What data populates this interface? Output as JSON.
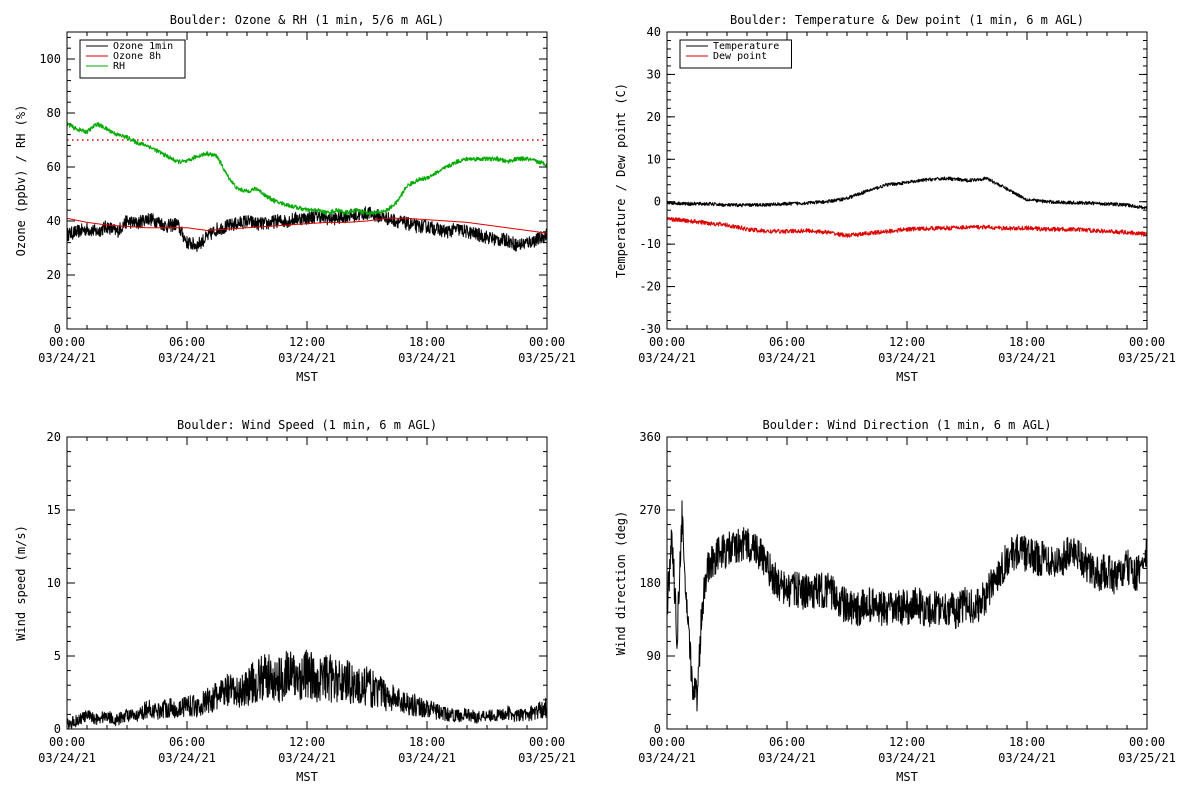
{
  "chart_data": [
    {
      "type": "line",
      "title": "Boulder: Ozone & RH (1 min, 5/6 m AGL)",
      "xlabel": "MST",
      "ylabel": "Ozone (ppbv) / RH (%)",
      "xlim": [
        0,
        24
      ],
      "ylim": [
        0,
        110
      ],
      "yticks": [
        "0",
        "20",
        "40",
        "60",
        "80",
        "100"
      ],
      "ytick_values": [
        0,
        20,
        40,
        60,
        80,
        100
      ],
      "xticks": [
        {
          "time": "00:00",
          "date": "03/24/21"
        },
        {
          "time": "06:00",
          "date": "03/24/21"
        },
        {
          "time": "12:00",
          "date": "03/24/21"
        },
        {
          "time": "18:00",
          "date": "03/24/21"
        },
        {
          "time": "00:00",
          "date": "03/25/21"
        }
      ],
      "legend_position": "top-left",
      "reference_line": {
        "y": 70,
        "color": "#dd0000",
        "style": "dotted"
      },
      "series": [
        {
          "name": "Ozone 1min",
          "color": "#000000",
          "x": [
            0,
            0.5,
            1,
            1.5,
            2,
            2.5,
            3,
            3.5,
            4,
            4.5,
            5,
            5.5,
            6,
            6.5,
            7,
            7.5,
            8,
            8.5,
            9,
            9.5,
            10,
            10.5,
            11,
            11.5,
            12,
            12.5,
            13,
            13.5,
            14,
            14.5,
            15,
            15.5,
            16,
            16.5,
            17,
            17.5,
            18,
            18.5,
            19,
            19.5,
            20,
            20.5,
            21,
            21.5,
            22,
            22.5,
            23,
            23.5,
            24
          ],
          "y": [
            35,
            36,
            37,
            36,
            38,
            36,
            40,
            39,
            41,
            40,
            38,
            39,
            32,
            31,
            34,
            37,
            38,
            39,
            40,
            39,
            39,
            40,
            40,
            41,
            41,
            42,
            41,
            41,
            42,
            42,
            43,
            42,
            41,
            40,
            39,
            38,
            38,
            37,
            36,
            37,
            36,
            35,
            34,
            33,
            33,
            31,
            32,
            33,
            35
          ]
        },
        {
          "name": "Ozone 8h",
          "color": "#dd0000",
          "x": [
            0,
            1,
            2,
            3,
            4,
            5,
            6,
            7,
            8,
            9,
            10,
            11,
            12,
            13,
            14,
            15,
            16,
            17,
            18,
            19,
            20,
            21,
            22,
            23,
            24
          ],
          "y": [
            41,
            39.5,
            38.5,
            38,
            37.5,
            37.5,
            37.5,
            36.5,
            37,
            37.5,
            38,
            38.5,
            39,
            39.5,
            39.5,
            40,
            41,
            41,
            40.5,
            40,
            39.5,
            38.5,
            37.5,
            36.5,
            35.5
          ]
        },
        {
          "name": "RH",
          "color": "#00aa00",
          "x": [
            0,
            0.5,
            1,
            1.5,
            2,
            2.5,
            3,
            3.5,
            4,
            4.5,
            5,
            5.5,
            6,
            6.5,
            7,
            7.5,
            8,
            8.5,
            9,
            9.5,
            10,
            10.5,
            11,
            11.5,
            12,
            12.5,
            13,
            13.5,
            14,
            14.5,
            15,
            15.5,
            16,
            16.5,
            17,
            17.5,
            18,
            18.5,
            19,
            19.5,
            20,
            20.5,
            21,
            21.5,
            22,
            22.5,
            23,
            23.5,
            24
          ],
          "y": [
            76,
            74,
            73,
            76,
            74,
            72,
            71,
            69,
            68,
            66,
            64,
            62,
            62,
            64,
            65,
            64,
            57,
            52,
            51,
            52,
            49,
            47,
            46,
            45,
            44,
            44,
            43,
            44,
            43,
            44,
            43,
            43,
            44,
            47,
            53,
            55,
            56,
            58,
            60,
            62,
            63,
            63,
            63,
            63,
            62,
            63,
            63,
            62,
            61
          ]
        }
      ]
    },
    {
      "type": "line",
      "title": "Boulder: Temperature & Dew point (1 min, 6 m AGL)",
      "xlabel": "MST",
      "ylabel": "Temperature / Dew point (C)",
      "xlim": [
        0,
        24
      ],
      "ylim": [
        -30,
        40
      ],
      "yticks": [
        "-30",
        "-20",
        "-10",
        "0",
        "10",
        "20",
        "30",
        "40"
      ],
      "ytick_values": [
        -30,
        -20,
        -10,
        0,
        10,
        20,
        30,
        40
      ],
      "xticks": [
        {
          "time": "00:00",
          "date": "03/24/21"
        },
        {
          "time": "06:00",
          "date": "03/24/21"
        },
        {
          "time": "12:00",
          "date": "03/24/21"
        },
        {
          "time": "18:00",
          "date": "03/24/21"
        },
        {
          "time": "00:00",
          "date": "03/25/21"
        }
      ],
      "legend_position": "top-left",
      "series": [
        {
          "name": "Temperature",
          "color": "#000000",
          "x": [
            0,
            1,
            2,
            3,
            4,
            5,
            6,
            7,
            8,
            9,
            10,
            11,
            12,
            13,
            14,
            15,
            16,
            17,
            18,
            19,
            20,
            21,
            22,
            23,
            24
          ],
          "y": [
            -0.2,
            -0.5,
            -0.5,
            -0.8,
            -0.8,
            -0.7,
            -0.5,
            -0.3,
            0,
            0.8,
            2.5,
            4,
            4.5,
            5.2,
            5.5,
            5,
            5.5,
            3,
            0.5,
            0,
            -0.2,
            -0.3,
            -0.5,
            -0.8,
            -1.5
          ]
        },
        {
          "name": "Dew point",
          "color": "#dd0000",
          "x": [
            0,
            1,
            2,
            3,
            4,
            5,
            6,
            7,
            8,
            9,
            10,
            11,
            12,
            13,
            14,
            15,
            16,
            17,
            18,
            19,
            20,
            21,
            22,
            23,
            24
          ],
          "y": [
            -4,
            -4.5,
            -5,
            -5.5,
            -6.5,
            -7,
            -7,
            -6.8,
            -7.2,
            -8,
            -7.5,
            -7,
            -6.5,
            -6.3,
            -6.2,
            -6,
            -6,
            -6.3,
            -6.2,
            -6.5,
            -6.5,
            -6.7,
            -7,
            -7.2,
            -7.7
          ]
        }
      ]
    },
    {
      "type": "line",
      "title": "Boulder: Wind Speed (1 min, 6 m AGL)",
      "xlabel": "MST",
      "ylabel": "Wind speed (m/s)",
      "xlim": [
        0,
        24
      ],
      "ylim": [
        0,
        20
      ],
      "yticks": [
        "0",
        "5",
        "10",
        "15",
        "20"
      ],
      "ytick_values": [
        0,
        5,
        10,
        15,
        20
      ],
      "xticks": [
        {
          "time": "00:00",
          "date": "03/24/21"
        },
        {
          "time": "06:00",
          "date": "03/24/21"
        },
        {
          "time": "12:00",
          "date": "03/24/21"
        },
        {
          "time": "18:00",
          "date": "03/24/21"
        },
        {
          "time": "00:00",
          "date": "03/25/21"
        }
      ],
      "series": [
        {
          "color": "#000000",
          "x": [
            0,
            0.5,
            1,
            1.5,
            2,
            2.5,
            3,
            3.5,
            4,
            4.5,
            5,
            5.5,
            6,
            6.5,
            7,
            7.5,
            8,
            8.5,
            9,
            9.5,
            10,
            10.5,
            11,
            11.5,
            12,
            12.5,
            13,
            13.5,
            14,
            14.5,
            15,
            15.5,
            16,
            16.5,
            17,
            17.5,
            18,
            18.5,
            19,
            19.5,
            20,
            20.5,
            21,
            21.5,
            22,
            22.5,
            23,
            23.5,
            24
          ],
          "y": [
            0.3,
            0.6,
            0.9,
            0.7,
            0.9,
            0.6,
            1.0,
            0.8,
            1.4,
            1.2,
            1.5,
            1.3,
            1.7,
            1.5,
            1.9,
            2.2,
            2.6,
            2.4,
            2.9,
            3.3,
            3.6,
            3.2,
            3.9,
            3.4,
            3.8,
            3.3,
            3.6,
            3.2,
            3.4,
            2.9,
            2.9,
            2.6,
            2.3,
            2.0,
            1.8,
            1.6,
            1.4,
            1.2,
            1.0,
            0.9,
            1.0,
            0.8,
            1.0,
            0.9,
            1.1,
            0.9,
            1.0,
            1.2,
            1.5
          ]
        }
      ]
    },
    {
      "type": "line",
      "title": "Boulder: Wind Direction (1 min, 6 m AGL)",
      "xlabel": "MST",
      "ylabel": "Wind direction (deg)",
      "xlim": [
        0,
        24
      ],
      "ylim": [
        0,
        360
      ],
      "yticks": [
        "0",
        "90",
        "180",
        "270",
        "360"
      ],
      "ytick_values": [
        0,
        90,
        180,
        270,
        360
      ],
      "xticks": [
        {
          "time": "00:00",
          "date": "03/24/21"
        },
        {
          "time": "06:00",
          "date": "03/24/21"
        },
        {
          "time": "12:00",
          "date": "03/24/21"
        },
        {
          "time": "18:00",
          "date": "03/24/21"
        },
        {
          "time": "00:00",
          "date": "03/25/21"
        }
      ],
      "series": [
        {
          "color": "#000000",
          "x": [
            0,
            0.25,
            0.5,
            0.75,
            1,
            1.25,
            1.5,
            1.75,
            2,
            2.5,
            3,
            3.5,
            4,
            4.5,
            5,
            5.5,
            6,
            6.5,
            7,
            7.5,
            8,
            8.5,
            9,
            9.5,
            10,
            10.5,
            11,
            11.5,
            12,
            12.5,
            13,
            13.5,
            14,
            14.5,
            15,
            15.5,
            16,
            16.5,
            17,
            17.5,
            18,
            18.5,
            19,
            19.5,
            20,
            20.5,
            21,
            21.5,
            22,
            22.5,
            23,
            23.5,
            24
          ],
          "y": [
            150,
            240,
            110,
            260,
            140,
            60,
            40,
            150,
            200,
            215,
            220,
            225,
            228,
            222,
            200,
            180,
            170,
            172,
            168,
            170,
            172,
            162,
            150,
            145,
            155,
            150,
            145,
            150,
            150,
            155,
            145,
            150,
            150,
            145,
            155,
            150,
            165,
            190,
            210,
            220,
            215,
            210,
            212,
            205,
            215,
            220,
            200,
            190,
            195,
            185,
            200,
            190,
            215
          ]
        }
      ]
    }
  ]
}
